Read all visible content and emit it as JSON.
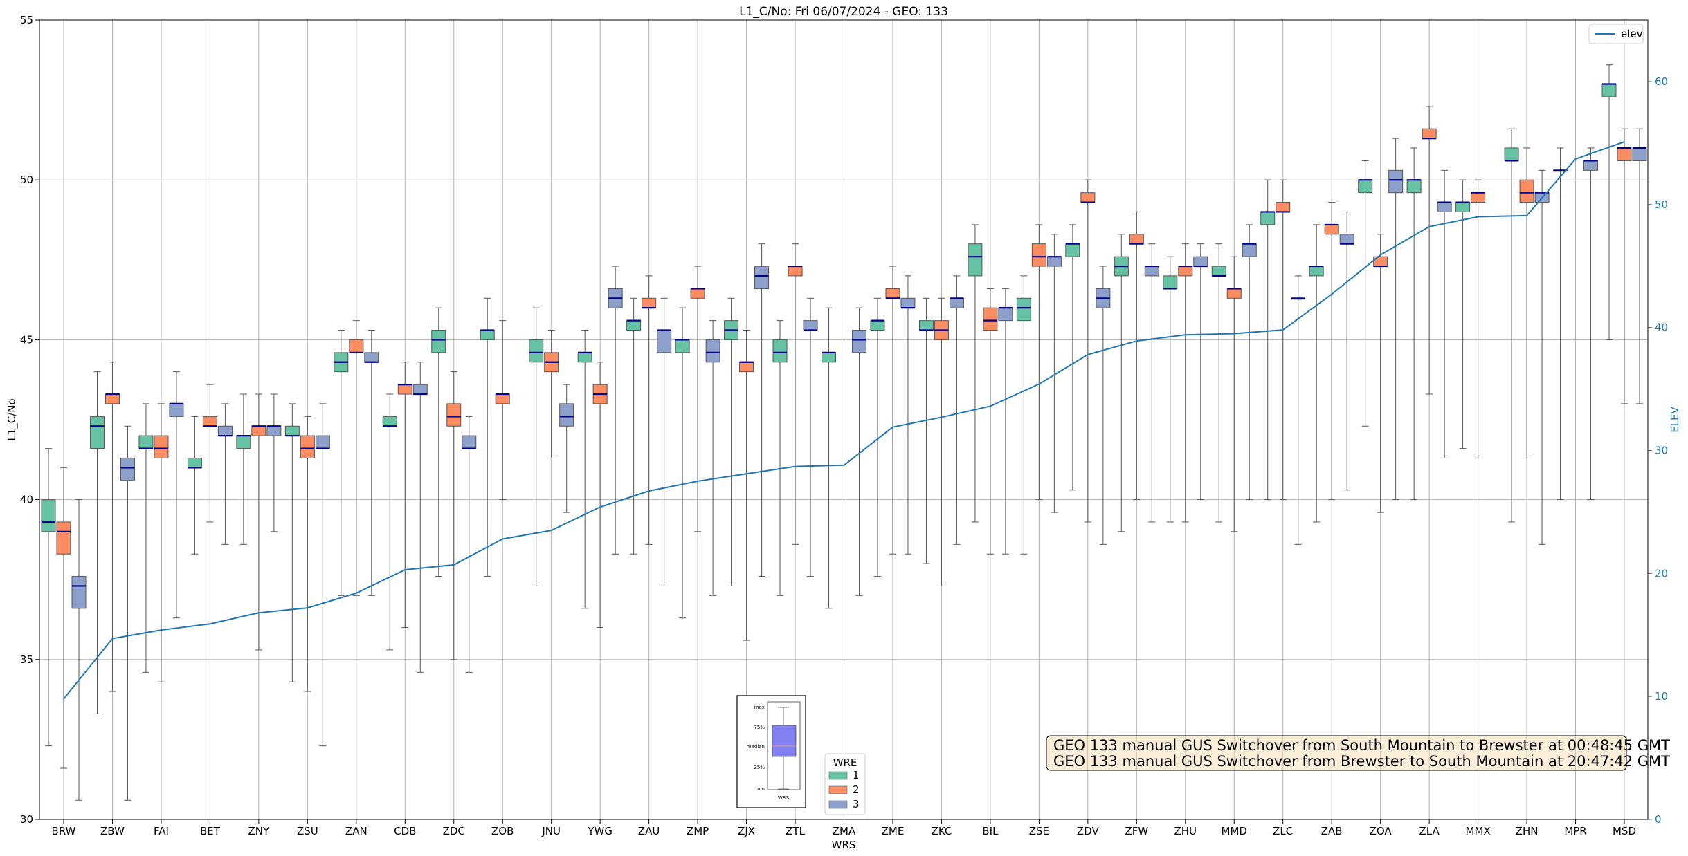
{
  "chart_data": {
    "type": "box",
    "title": "L1_C/No: Fri 06/07/2024 - GEO: 133",
    "xlabel": "WRS",
    "ylabel": "L1_C/No",
    "y2label": "ELEV",
    "ylim": [
      30,
      55
    ],
    "y2lim": [
      0,
      65
    ],
    "yticks": [
      30,
      35,
      40,
      45,
      50,
      55
    ],
    "y2ticks": [
      0,
      10,
      20,
      30,
      40,
      50,
      60
    ],
    "grid": true,
    "colors": {
      "1": "#66c2a5",
      "2": "#fc8d62",
      "3": "#8da0cb",
      "elev": "#1f77b4",
      "median": "#00008b"
    },
    "categories": [
      "BRW",
      "ZBW",
      "FAI",
      "BET",
      "ZNY",
      "ZSU",
      "ZAN",
      "CDB",
      "ZDC",
      "ZOB",
      "JNU",
      "YWG",
      "ZAU",
      "ZMP",
      "ZJX",
      "ZTL",
      "ZMA",
      "ZME",
      "ZKC",
      "BIL",
      "ZSE",
      "ZDV",
      "ZFW",
      "ZHU",
      "MMD",
      "ZLC",
      "ZAB",
      "ZOA",
      "ZLA",
      "MMX",
      "ZHN",
      "MPR",
      "MSD"
    ],
    "boxes": [
      {
        "wrs": "BRW",
        "wre": "1",
        "min": 32.3,
        "q1": 39.0,
        "median": 39.3,
        "q3": 40.0,
        "max": 41.6
      },
      {
        "wrs": "BRW",
        "wre": "2",
        "min": 31.6,
        "q1": 38.3,
        "median": 39.0,
        "q3": 39.3,
        "max": 41.0
      },
      {
        "wrs": "BRW",
        "wre": "3",
        "min": 30.6,
        "q1": 36.6,
        "median": 37.3,
        "q3": 37.6,
        "max": 40.0
      },
      {
        "wrs": "ZBW",
        "wre": "1",
        "min": 33.3,
        "q1": 41.6,
        "median": 42.3,
        "q3": 42.6,
        "max": 44.0
      },
      {
        "wrs": "ZBW",
        "wre": "2",
        "min": 34.0,
        "q1": 43.0,
        "median": 43.3,
        "q3": 43.3,
        "max": 44.3
      },
      {
        "wrs": "ZBW",
        "wre": "3",
        "min": 30.6,
        "q1": 40.6,
        "median": 41.0,
        "q3": 41.3,
        "max": 42.3
      },
      {
        "wrs": "FAI",
        "wre": "1",
        "min": 34.6,
        "q1": 41.6,
        "median": 41.6,
        "q3": 42.0,
        "max": 43.0
      },
      {
        "wrs": "FAI",
        "wre": "2",
        "min": 34.3,
        "q1": 41.3,
        "median": 41.6,
        "q3": 42.0,
        "max": 43.0
      },
      {
        "wrs": "FAI",
        "wre": "3",
        "min": 36.3,
        "q1": 42.6,
        "median": 43.0,
        "q3": 43.0,
        "max": 44.0
      },
      {
        "wrs": "BET",
        "wre": "1",
        "min": 38.3,
        "q1": 41.0,
        "median": 41.0,
        "q3": 41.3,
        "max": 42.6
      },
      {
        "wrs": "BET",
        "wre": "2",
        "min": 39.3,
        "q1": 42.3,
        "median": 42.3,
        "q3": 42.6,
        "max": 43.6
      },
      {
        "wrs": "BET",
        "wre": "3",
        "min": 38.6,
        "q1": 42.0,
        "median": 42.0,
        "q3": 42.3,
        "max": 43.0
      },
      {
        "wrs": "ZNY",
        "wre": "1",
        "min": 38.6,
        "q1": 41.6,
        "median": 42.0,
        "q3": 42.0,
        "max": 43.3
      },
      {
        "wrs": "ZNY",
        "wre": "2",
        "min": 35.3,
        "q1": 42.0,
        "median": 42.3,
        "q3": 42.3,
        "max": 43.3
      },
      {
        "wrs": "ZNY",
        "wre": "3",
        "min": 39.0,
        "q1": 42.0,
        "median": 42.3,
        "q3": 42.3,
        "max": 43.3
      },
      {
        "wrs": "ZSU",
        "wre": "1",
        "min": 34.3,
        "q1": 42.0,
        "median": 42.0,
        "q3": 42.3,
        "max": 43.0
      },
      {
        "wrs": "ZSU",
        "wre": "2",
        "min": 34.0,
        "q1": 41.3,
        "median": 41.6,
        "q3": 42.0,
        "max": 42.6
      },
      {
        "wrs": "ZSU",
        "wre": "3",
        "min": 32.3,
        "q1": 41.6,
        "median": 41.6,
        "q3": 42.0,
        "max": 43.0
      },
      {
        "wrs": "ZAN",
        "wre": "1",
        "min": 37.0,
        "q1": 44.0,
        "median": 44.3,
        "q3": 44.6,
        "max": 45.3
      },
      {
        "wrs": "ZAN",
        "wre": "2",
        "min": 37.0,
        "q1": 44.6,
        "median": 44.6,
        "q3": 45.0,
        "max": 45.6
      },
      {
        "wrs": "ZAN",
        "wre": "3",
        "min": 37.0,
        "q1": 44.3,
        "median": 44.3,
        "q3": 44.6,
        "max": 45.3
      },
      {
        "wrs": "CDB",
        "wre": "1",
        "min": 35.3,
        "q1": 42.3,
        "median": 42.3,
        "q3": 42.6,
        "max": 43.3
      },
      {
        "wrs": "CDB",
        "wre": "2",
        "min": 36.0,
        "q1": 43.3,
        "median": 43.6,
        "q3": 43.6,
        "max": 44.3
      },
      {
        "wrs": "CDB",
        "wre": "3",
        "min": 34.6,
        "q1": 43.3,
        "median": 43.3,
        "q3": 43.6,
        "max": 44.3
      },
      {
        "wrs": "ZDC",
        "wre": "1",
        "min": 37.6,
        "q1": 44.6,
        "median": 45.0,
        "q3": 45.3,
        "max": 46.0
      },
      {
        "wrs": "ZDC",
        "wre": "2",
        "min": 35.0,
        "q1": 42.3,
        "median": 42.6,
        "q3": 43.0,
        "max": 44.0
      },
      {
        "wrs": "ZDC",
        "wre": "3",
        "min": 34.6,
        "q1": 41.6,
        "median": 41.6,
        "q3": 42.0,
        "max": 42.6
      },
      {
        "wrs": "ZOB",
        "wre": "1",
        "min": 37.6,
        "q1": 45.0,
        "median": 45.3,
        "q3": 45.3,
        "max": 46.3
      },
      {
        "wrs": "ZOB",
        "wre": "2",
        "min": 40.0,
        "q1": 43.0,
        "median": 43.3,
        "q3": 43.3,
        "max": 45.6
      },
      {
        "wrs": "JNU",
        "wre": "1",
        "min": 37.3,
        "q1": 44.3,
        "median": 44.6,
        "q3": 45.0,
        "max": 46.0
      },
      {
        "wrs": "JNU",
        "wre": "2",
        "min": 41.3,
        "q1": 44.0,
        "median": 44.3,
        "q3": 44.6,
        "max": 45.3
      },
      {
        "wrs": "JNU",
        "wre": "3",
        "min": 39.6,
        "q1": 42.3,
        "median": 42.6,
        "q3": 43.0,
        "max": 43.6
      },
      {
        "wrs": "YWG",
        "wre": "1",
        "min": 36.6,
        "q1": 44.3,
        "median": 44.6,
        "q3": 44.6,
        "max": 45.3
      },
      {
        "wrs": "YWG",
        "wre": "2",
        "min": 36.0,
        "q1": 43.0,
        "median": 43.3,
        "q3": 43.6,
        "max": 44.3
      },
      {
        "wrs": "YWG",
        "wre": "3",
        "min": 38.3,
        "q1": 46.0,
        "median": 46.3,
        "q3": 46.6,
        "max": 47.3
      },
      {
        "wrs": "ZAU",
        "wre": "1",
        "min": 38.3,
        "q1": 45.3,
        "median": 45.6,
        "q3": 45.6,
        "max": 46.3
      },
      {
        "wrs": "ZAU",
        "wre": "2",
        "min": 38.6,
        "q1": 46.0,
        "median": 46.0,
        "q3": 46.3,
        "max": 47.0
      },
      {
        "wrs": "ZAU",
        "wre": "3",
        "min": 37.3,
        "q1": 44.6,
        "median": 45.3,
        "q3": 45.3,
        "max": 46.3
      },
      {
        "wrs": "ZMP",
        "wre": "1",
        "min": 36.3,
        "q1": 44.6,
        "median": 45.0,
        "q3": 45.0,
        "max": 46.0
      },
      {
        "wrs": "ZMP",
        "wre": "2",
        "min": 39.0,
        "q1": 46.3,
        "median": 46.6,
        "q3": 46.6,
        "max": 47.3
      },
      {
        "wrs": "ZMP",
        "wre": "3",
        "min": 37.0,
        "q1": 44.3,
        "median": 44.6,
        "q3": 45.0,
        "max": 45.6
      },
      {
        "wrs": "ZJX",
        "wre": "1",
        "min": 37.3,
        "q1": 45.0,
        "median": 45.3,
        "q3": 45.6,
        "max": 46.3
      },
      {
        "wrs": "ZJX",
        "wre": "2",
        "min": 35.6,
        "q1": 44.0,
        "median": 44.3,
        "q3": 44.3,
        "max": 45.3
      },
      {
        "wrs": "ZJX",
        "wre": "3",
        "min": 37.6,
        "q1": 46.6,
        "median": 47.0,
        "q3": 47.3,
        "max": 48.0
      },
      {
        "wrs": "ZTL",
        "wre": "1",
        "min": 37.0,
        "q1": 44.3,
        "median": 44.6,
        "q3": 45.0,
        "max": 45.6
      },
      {
        "wrs": "ZTL",
        "wre": "2",
        "min": 38.6,
        "q1": 47.0,
        "median": 47.3,
        "q3": 47.3,
        "max": 48.0
      },
      {
        "wrs": "ZTL",
        "wre": "3",
        "min": 37.6,
        "q1": 45.3,
        "median": 45.3,
        "q3": 45.6,
        "max": 46.3
      },
      {
        "wrs": "ZMA",
        "wre": "1",
        "min": 36.6,
        "q1": 44.3,
        "median": 44.6,
        "q3": 44.6,
        "max": 46.0
      },
      {
        "wrs": "ZMA",
        "wre": "3",
        "min": 37.0,
        "q1": 44.6,
        "median": 45.0,
        "q3": 45.3,
        "max": 46.0
      },
      {
        "wrs": "ZME",
        "wre": "1",
        "min": 37.6,
        "q1": 45.3,
        "median": 45.6,
        "q3": 45.6,
        "max": 46.3
      },
      {
        "wrs": "ZME",
        "wre": "2",
        "min": 38.3,
        "q1": 46.3,
        "median": 46.3,
        "q3": 46.6,
        "max": 47.3
      },
      {
        "wrs": "ZME",
        "wre": "3",
        "min": 38.3,
        "q1": 46.0,
        "median": 46.0,
        "q3": 46.3,
        "max": 47.0
      },
      {
        "wrs": "ZKC",
        "wre": "1",
        "min": 38.0,
        "q1": 45.3,
        "median": 45.3,
        "q3": 45.6,
        "max": 46.3
      },
      {
        "wrs": "ZKC",
        "wre": "2",
        "min": 37.3,
        "q1": 45.0,
        "median": 45.3,
        "q3": 45.6,
        "max": 46.3
      },
      {
        "wrs": "ZKC",
        "wre": "3",
        "min": 38.6,
        "q1": 46.0,
        "median": 46.3,
        "q3": 46.3,
        "max": 47.0
      },
      {
        "wrs": "BIL",
        "wre": "1",
        "min": 39.3,
        "q1": 47.0,
        "median": 47.6,
        "q3": 48.0,
        "max": 48.6
      },
      {
        "wrs": "BIL",
        "wre": "2",
        "min": 38.3,
        "q1": 45.3,
        "median": 45.6,
        "q3": 46.0,
        "max": 46.6
      },
      {
        "wrs": "BIL",
        "wre": "3",
        "min": 38.3,
        "q1": 45.6,
        "median": 46.0,
        "q3": 46.0,
        "max": 46.6
      },
      {
        "wrs": "ZSE",
        "wre": "1",
        "min": 38.3,
        "q1": 45.6,
        "median": 46.0,
        "q3": 46.3,
        "max": 47.0
      },
      {
        "wrs": "ZSE",
        "wre": "2",
        "min": 40.0,
        "q1": 47.3,
        "median": 47.6,
        "q3": 48.0,
        "max": 48.6
      },
      {
        "wrs": "ZSE",
        "wre": "3",
        "min": 39.6,
        "q1": 47.3,
        "median": 47.6,
        "q3": 47.6,
        "max": 48.3
      },
      {
        "wrs": "ZDV",
        "wre": "1",
        "min": 40.3,
        "q1": 47.6,
        "median": 48.0,
        "q3": 48.0,
        "max": 48.6
      },
      {
        "wrs": "ZDV",
        "wre": "2",
        "min": 39.3,
        "q1": 49.3,
        "median": 49.3,
        "q3": 49.6,
        "max": 50.0
      },
      {
        "wrs": "ZDV",
        "wre": "3",
        "min": 38.6,
        "q1": 46.0,
        "median": 46.3,
        "q3": 46.6,
        "max": 47.3
      },
      {
        "wrs": "ZFW",
        "wre": "1",
        "min": 39.0,
        "q1": 47.0,
        "median": 47.3,
        "q3": 47.6,
        "max": 48.3
      },
      {
        "wrs": "ZFW",
        "wre": "2",
        "min": 40.0,
        "q1": 48.0,
        "median": 48.0,
        "q3": 48.3,
        "max": 49.0
      },
      {
        "wrs": "ZFW",
        "wre": "3",
        "min": 39.3,
        "q1": 47.0,
        "median": 47.3,
        "q3": 47.3,
        "max": 48.0
      },
      {
        "wrs": "ZHU",
        "wre": "1",
        "min": 39.3,
        "q1": 46.6,
        "median": 46.6,
        "q3": 47.0,
        "max": 47.6
      },
      {
        "wrs": "ZHU",
        "wre": "2",
        "min": 39.3,
        "q1": 47.0,
        "median": 47.3,
        "q3": 47.3,
        "max": 48.0
      },
      {
        "wrs": "ZHU",
        "wre": "3",
        "min": 40.0,
        "q1": 47.3,
        "median": 47.3,
        "q3": 47.6,
        "max": 48.0
      },
      {
        "wrs": "MMD",
        "wre": "1",
        "min": 39.3,
        "q1": 47.0,
        "median": 47.0,
        "q3": 47.3,
        "max": 48.0
      },
      {
        "wrs": "MMD",
        "wre": "2",
        "min": 39.0,
        "q1": 46.3,
        "median": 46.6,
        "q3": 46.6,
        "max": 47.6
      },
      {
        "wrs": "MMD",
        "wre": "3",
        "min": 40.0,
        "q1": 47.6,
        "median": 48.0,
        "q3": 48.0,
        "max": 48.6
      },
      {
        "wrs": "ZLC",
        "wre": "1",
        "min": 40.0,
        "q1": 48.6,
        "median": 49.0,
        "q3": 49.0,
        "max": 50.0
      },
      {
        "wrs": "ZLC",
        "wre": "2",
        "min": 40.0,
        "q1": 49.0,
        "median": 49.0,
        "q3": 49.3,
        "max": 50.0
      },
      {
        "wrs": "ZLC",
        "wre": "3",
        "min": 38.6,
        "q1": 46.3,
        "median": 46.3,
        "q3": 46.3,
        "max": 47.0
      },
      {
        "wrs": "ZAB",
        "wre": "1",
        "min": 39.3,
        "q1": 47.0,
        "median": 47.3,
        "q3": 47.3,
        "max": 48.6
      },
      {
        "wrs": "ZAB",
        "wre": "2",
        "min": 40.0,
        "q1": 48.3,
        "median": 48.6,
        "q3": 48.6,
        "max": 49.3
      },
      {
        "wrs": "ZAB",
        "wre": "3",
        "min": 40.3,
        "q1": 48.0,
        "median": 48.0,
        "q3": 48.3,
        "max": 49.0
      },
      {
        "wrs": "ZOA",
        "wre": "1",
        "min": 42.3,
        "q1": 49.6,
        "median": 50.0,
        "q3": 50.0,
        "max": 50.6
      },
      {
        "wrs": "ZOA",
        "wre": "2",
        "min": 39.6,
        "q1": 47.3,
        "median": 47.3,
        "q3": 47.6,
        "max": 48.3
      },
      {
        "wrs": "ZOA",
        "wre": "3",
        "min": 40.0,
        "q1": 49.6,
        "median": 50.0,
        "q3": 50.3,
        "max": 51.3
      },
      {
        "wrs": "ZLA",
        "wre": "1",
        "min": 40.0,
        "q1": 49.6,
        "median": 50.0,
        "q3": 50.0,
        "max": 51.0
      },
      {
        "wrs": "ZLA",
        "wre": "2",
        "min": 43.3,
        "q1": 51.3,
        "median": 51.3,
        "q3": 51.6,
        "max": 52.3
      },
      {
        "wrs": "ZLA",
        "wre": "3",
        "min": 41.3,
        "q1": 49.0,
        "median": 49.3,
        "q3": 49.3,
        "max": 50.3
      },
      {
        "wrs": "MMX",
        "wre": "1",
        "min": 41.6,
        "q1": 49.0,
        "median": 49.3,
        "q3": 49.3,
        "max": 50.0
      },
      {
        "wrs": "MMX",
        "wre": "2",
        "min": 41.3,
        "q1": 49.3,
        "median": 49.6,
        "q3": 49.6,
        "max": 50.0
      },
      {
        "wrs": "ZHN",
        "wre": "1",
        "min": 39.3,
        "q1": 50.6,
        "median": 50.6,
        "q3": 51.0,
        "max": 51.6
      },
      {
        "wrs": "ZHN",
        "wre": "2",
        "min": 41.3,
        "q1": 49.3,
        "median": 49.6,
        "q3": 50.0,
        "max": 51.0
      },
      {
        "wrs": "ZHN",
        "wre": "3",
        "min": 38.6,
        "q1": 49.3,
        "median": 49.6,
        "q3": 49.6,
        "max": 50.3
      },
      {
        "wrs": "MPR",
        "wre": "1",
        "min": 40.0,
        "q1": 50.3,
        "median": 50.3,
        "q3": 50.3,
        "max": 51.0
      },
      {
        "wrs": "MPR",
        "wre": "3",
        "min": 40.0,
        "q1": 50.3,
        "median": 50.6,
        "q3": 50.6,
        "max": 51.0
      },
      {
        "wrs": "MSD",
        "wre": "1",
        "min": 45.0,
        "q1": 52.6,
        "median": 53.0,
        "q3": 53.0,
        "max": 53.6
      },
      {
        "wrs": "MSD",
        "wre": "2",
        "min": 43.0,
        "q1": 50.6,
        "median": 51.0,
        "q3": 51.0,
        "max": 51.6
      },
      {
        "wrs": "MSD",
        "wre": "3",
        "min": 43.0,
        "q1": 50.6,
        "median": 51.0,
        "q3": 51.0,
        "max": 51.6
      }
    ],
    "elev_series": {
      "name": "elev",
      "values": [
        9.8,
        14.7,
        15.4,
        15.9,
        16.8,
        17.2,
        18.4,
        20.3,
        20.7,
        22.8,
        23.5,
        25.4,
        26.7,
        27.5,
        28.1,
        28.7,
        28.8,
        31.9,
        32.7,
        33.6,
        35.4,
        37.8,
        38.9,
        39.4,
        39.5,
        39.8,
        42.7,
        45.9,
        48.2,
        49.0,
        49.1,
        53.7,
        55.1
      ]
    },
    "legend_elev": {
      "label": "elev",
      "position": "top-right"
    },
    "legend_wre": {
      "title": "WRE",
      "entries": [
        "1",
        "2",
        "3"
      ],
      "position": "bottom-center"
    },
    "inset_legend": {
      "labels": [
        "max",
        "75%",
        "median",
        "25%",
        "min"
      ],
      "xlabel": "WRS"
    },
    "annotation": {
      "lines": [
        "GEO 133 manual GUS Switchover from South Mountain to Brewster at 00:48:45 GMT",
        "GEO 133 manual GUS Switchover from Brewster to South Mountain at 20:47:42 GMT"
      ]
    }
  }
}
